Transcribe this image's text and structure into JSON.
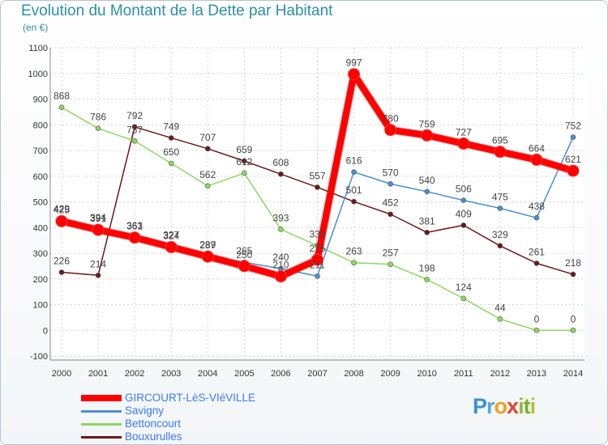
{
  "title": "Evolution du Montant de la Dette par Habitant",
  "subtitle": "(en €)",
  "logo_text": "Proxiti",
  "chart_data": {
    "type": "line",
    "title": "Evolution du Montant de la Dette par Habitant",
    "ylabel": "(en €)",
    "xlabel": "",
    "ylim": [
      -100,
      1100
    ],
    "yticks": [
      "-100",
      "0",
      "100",
      "200",
      "300",
      "400",
      "500",
      "600",
      "700",
      "800",
      "900",
      "1000",
      "1100"
    ],
    "categories": [
      "2000",
      "2001",
      "2002",
      "2003",
      "2004",
      "2005",
      "2006",
      "2007",
      "2008",
      "2009",
      "2010",
      "2011",
      "2012",
      "2013",
      "2014"
    ],
    "grid": true,
    "legend_position": "bottom-left",
    "series": [
      {
        "name": "GIRCOURT-LèS-VIéVILLE",
        "color": "#ff0000",
        "values": [
          425,
          391,
          361,
          324,
          287,
          250,
          210,
          275,
          997,
          780,
          759,
          727,
          695,
          664,
          621
        ],
        "labels": [
          "425",
          "391",
          "361",
          "324",
          "287",
          "250",
          "210",
          "275",
          "997",
          "780",
          "759",
          "727",
          "695",
          "664",
          "621"
        ]
      },
      {
        "name": "Savigny",
        "color": "#4a90d0",
        "values": [
          429,
          394,
          363,
          327,
          289,
          265,
          240,
          211,
          616,
          570,
          540,
          506,
          475,
          438,
          752
        ],
        "labels": [
          "429",
          "394",
          "363",
          "327",
          "289",
          "265",
          "240",
          "211",
          "616",
          "570",
          "540",
          "506",
          "475",
          "438",
          "752"
        ]
      },
      {
        "name": "Bettoncourt",
        "color": "#8ed860",
        "values": [
          868,
          786,
          737,
          650,
          562,
          612,
          393,
          330,
          263,
          257,
          198,
          124,
          44,
          0,
          0
        ],
        "labels": [
          "868",
          "786",
          "737",
          "650",
          "562",
          "612",
          "393",
          "330",
          "263",
          "257",
          "198",
          "124",
          "44",
          "0",
          "0"
        ]
      },
      {
        "name": "Bouxurulles",
        "color": "#6b1818",
        "values": [
          226,
          214,
          792,
          749,
          707,
          659,
          608,
          557,
          501,
          452,
          381,
          409,
          329,
          261,
          218
        ],
        "labels": [
          "226",
          "214",
          "792",
          "749",
          "707",
          "659",
          "608",
          "557",
          "501",
          "452",
          "381",
          "409",
          "329",
          "261",
          "218"
        ]
      }
    ]
  }
}
